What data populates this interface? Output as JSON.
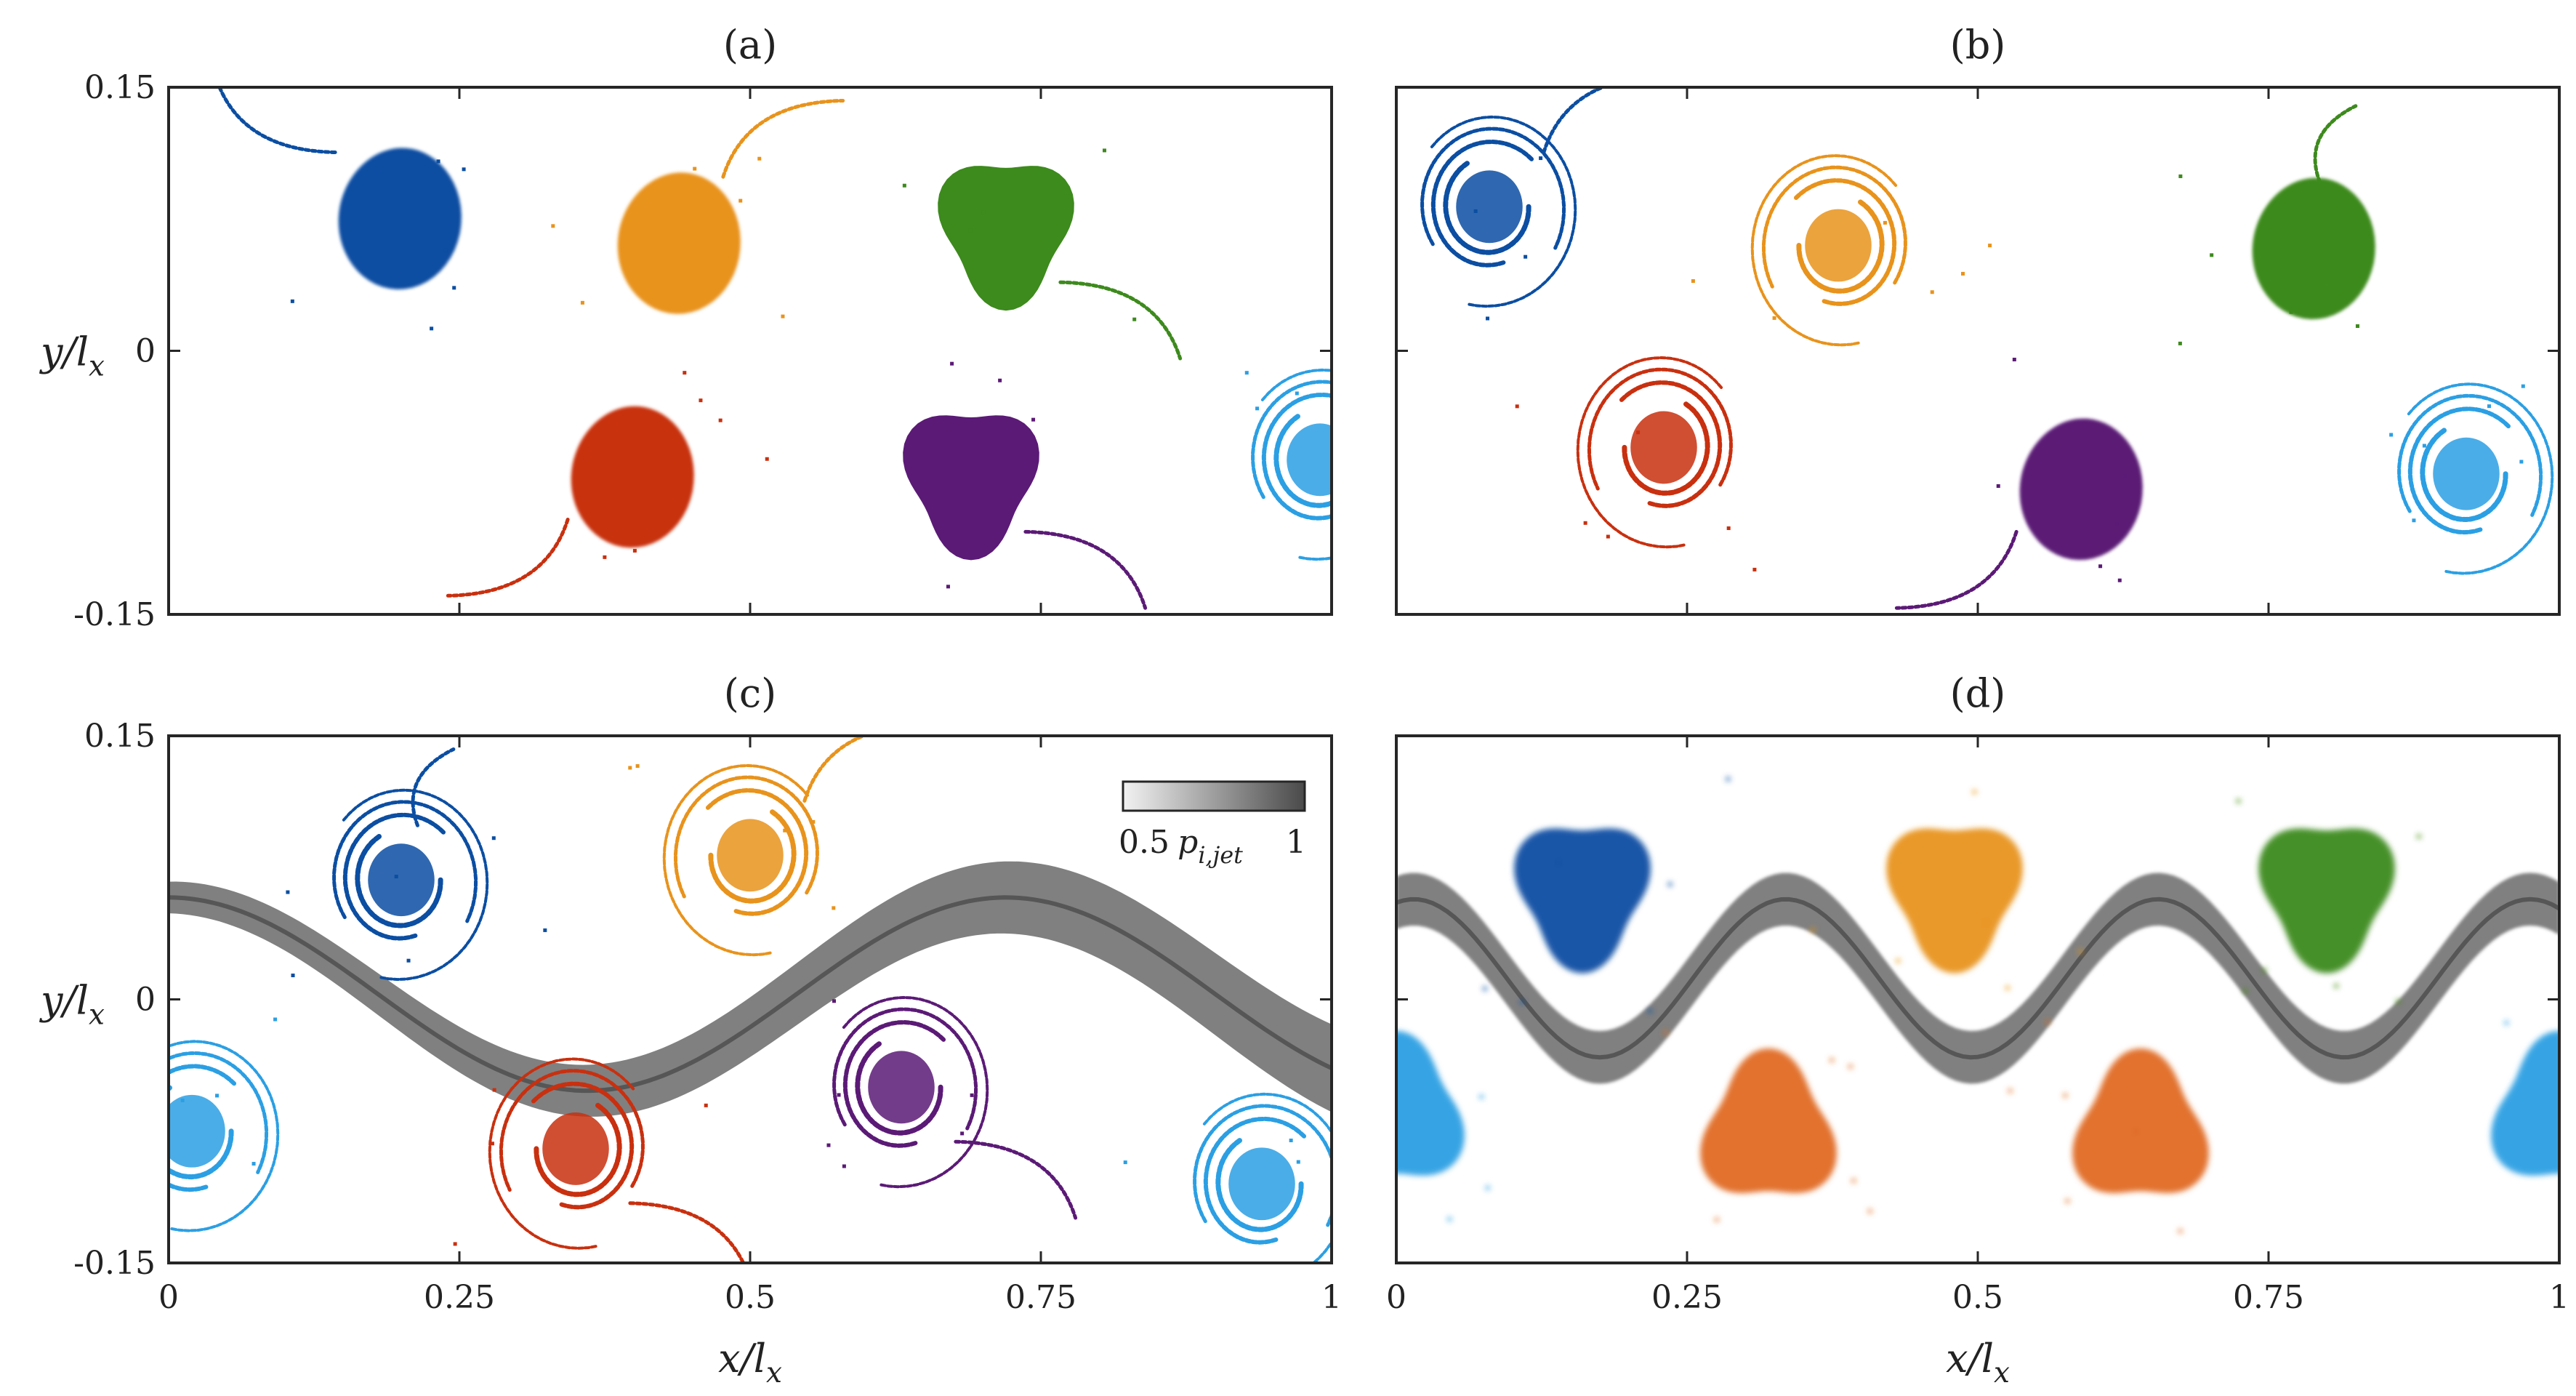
{
  "chart_data": [
    {
      "panel": "(a)",
      "type": "scatter",
      "xlim": [
        0,
        1
      ],
      "ylim": [
        -0.15,
        0.15
      ],
      "xticks": [
        "0",
        "0.25",
        "0.5",
        "0.75",
        "1"
      ],
      "yticks": [
        "0.15",
        "0",
        "-0.15"
      ],
      "xlabel": "",
      "ylabel": "y/l_x",
      "show_xticklabels": false,
      "show_yticklabels": true,
      "vortices": [
        {
          "color": "#0b4ea2",
          "x": 0.19,
          "y": 0.082,
          "shape": "tongue",
          "tail": "up-left",
          "sign": 1
        },
        {
          "color": "#e8931c",
          "x": 0.43,
          "y": 0.068,
          "shape": "tongue",
          "tail": "up-right",
          "sign": -1
        },
        {
          "color": "#3d8a1d",
          "x": 0.72,
          "y": 0.07,
          "shape": "blob",
          "tail": "down-right",
          "sign": 1
        },
        {
          "color": "#c8300f",
          "x": 0.39,
          "y": -0.065,
          "shape": "tongue",
          "tail": "down-left",
          "sign": -1
        },
        {
          "color": "#5b1a76",
          "x": 0.69,
          "y": -0.072,
          "shape": "blob",
          "tail": "down-right",
          "sign": 1
        },
        {
          "color": "#2b9fe3",
          "x": 0.99,
          "y": -0.062,
          "shape": "spiral",
          "tail": "none",
          "sign": 1
        }
      ]
    },
    {
      "panel": "(b)",
      "type": "scatter",
      "xlim": [
        0,
        1
      ],
      "ylim": [
        -0.15,
        0.15
      ],
      "xticks": [
        "0",
        "0.25",
        "0.5",
        "0.75",
        "1"
      ],
      "yticks": [
        "0.15",
        "0",
        "-0.15"
      ],
      "xlabel": "",
      "ylabel": "",
      "show_xticklabels": false,
      "show_yticklabels": false,
      "vortices": [
        {
          "color": "#0b4ea2",
          "x": 0.08,
          "y": 0.082,
          "shape": "spiral",
          "tail": "up-right",
          "sign": 1
        },
        {
          "color": "#e8931c",
          "x": 0.38,
          "y": 0.06,
          "shape": "spiral",
          "tail": "none",
          "sign": -1
        },
        {
          "color": "#3d8a1d",
          "x": 0.78,
          "y": 0.065,
          "shape": "tongue",
          "tail": "up",
          "sign": 1
        },
        {
          "color": "#c8300f",
          "x": 0.23,
          "y": -0.055,
          "shape": "spiral",
          "tail": "none",
          "sign": -1
        },
        {
          "color": "#5b1a76",
          "x": 0.58,
          "y": -0.072,
          "shape": "tongue",
          "tail": "down-left",
          "sign": 1
        },
        {
          "color": "#2b9fe3",
          "x": 0.92,
          "y": -0.07,
          "shape": "spiral",
          "tail": "none",
          "sign": 1
        }
      ]
    },
    {
      "panel": "(c)",
      "type": "scatter",
      "xlim": [
        0,
        1
      ],
      "ylim": [
        -0.15,
        0.15
      ],
      "xticks": [
        "0",
        "0.25",
        "0.5",
        "0.75",
        "1"
      ],
      "yticks": [
        "0.15",
        "0",
        "-0.15"
      ],
      "xlabel": "x/l_x",
      "ylabel": "y/l_x",
      "show_xticklabels": true,
      "show_yticklabels": true,
      "colorbar": {
        "label": "p_{i,jet}",
        "min_label": "0.5",
        "max_label": "1"
      },
      "jet": {
        "y_mean": 0.003,
        "amplitude": 0.055,
        "period": 0.72,
        "phase": 0.0,
        "width_left": 0.018,
        "width_right": 0.05
      },
      "vortices": [
        {
          "color": "#0b4ea2",
          "x": 0.2,
          "y": 0.068,
          "shape": "spiral",
          "tail": "up",
          "sign": 1
        },
        {
          "color": "#e8931c",
          "x": 0.5,
          "y": 0.082,
          "shape": "spiral",
          "tail": "up-right",
          "sign": -1
        },
        {
          "color": "#c8300f",
          "x": 0.35,
          "y": -0.085,
          "shape": "spiral",
          "tail": "down-right",
          "sign": -1
        },
        {
          "color": "#5b1a76",
          "x": 0.63,
          "y": -0.05,
          "shape": "spiral",
          "tail": "down-right",
          "sign": 1
        },
        {
          "color": "#2b9fe3",
          "x": 0.02,
          "y": -0.075,
          "shape": "spiral",
          "tail": "none",
          "sign": 1
        },
        {
          "color": "#2b9fe3",
          "x": 0.94,
          "y": -0.105,
          "shape": "spiral",
          "tail": "none",
          "sign": 1
        }
      ]
    },
    {
      "panel": "(d)",
      "type": "scatter",
      "xlim": [
        0,
        1
      ],
      "ylim": [
        -0.15,
        0.15
      ],
      "xticks": [
        "0",
        "0.25",
        "0.5",
        "0.75",
        "1"
      ],
      "yticks": [
        "0.15",
        "0",
        "-0.15"
      ],
      "xlabel": "x/l_x",
      "ylabel": "",
      "show_xticklabels": true,
      "show_yticklabels": false,
      "jet": {
        "y_mean": 0.012,
        "amplitude": 0.045,
        "period": 0.32,
        "phase": 0.015,
        "width_left": 0.03,
        "width_right": 0.03
      },
      "vortices": [
        {
          "color": "#0b4ea2",
          "x": 0.16,
          "y": 0.062,
          "shape": "blob",
          "tail": "none",
          "sign": 1
        },
        {
          "color": "#e8931c",
          "x": 0.48,
          "y": 0.062,
          "shape": "blob",
          "tail": "none",
          "sign": 1
        },
        {
          "color": "#3d8a1d",
          "x": 0.8,
          "y": 0.062,
          "shape": "blob",
          "tail": "none",
          "sign": 1
        },
        {
          "color": "#e06a22",
          "x": 0.32,
          "y": -0.075,
          "shape": "blob",
          "tail": "none",
          "sign": -1
        },
        {
          "color": "#e06a22",
          "x": 0.64,
          "y": -0.075,
          "shape": "blob",
          "tail": "none",
          "sign": -1
        },
        {
          "color": "#2b9fe3",
          "x": 1.0,
          "y": -0.065,
          "shape": "blob",
          "tail": "none",
          "sign": -1
        },
        {
          "color": "#2b9fe3",
          "x": 0.0,
          "y": -0.065,
          "shape": "blob",
          "tail": "none",
          "sign": -1
        }
      ]
    }
  ]
}
